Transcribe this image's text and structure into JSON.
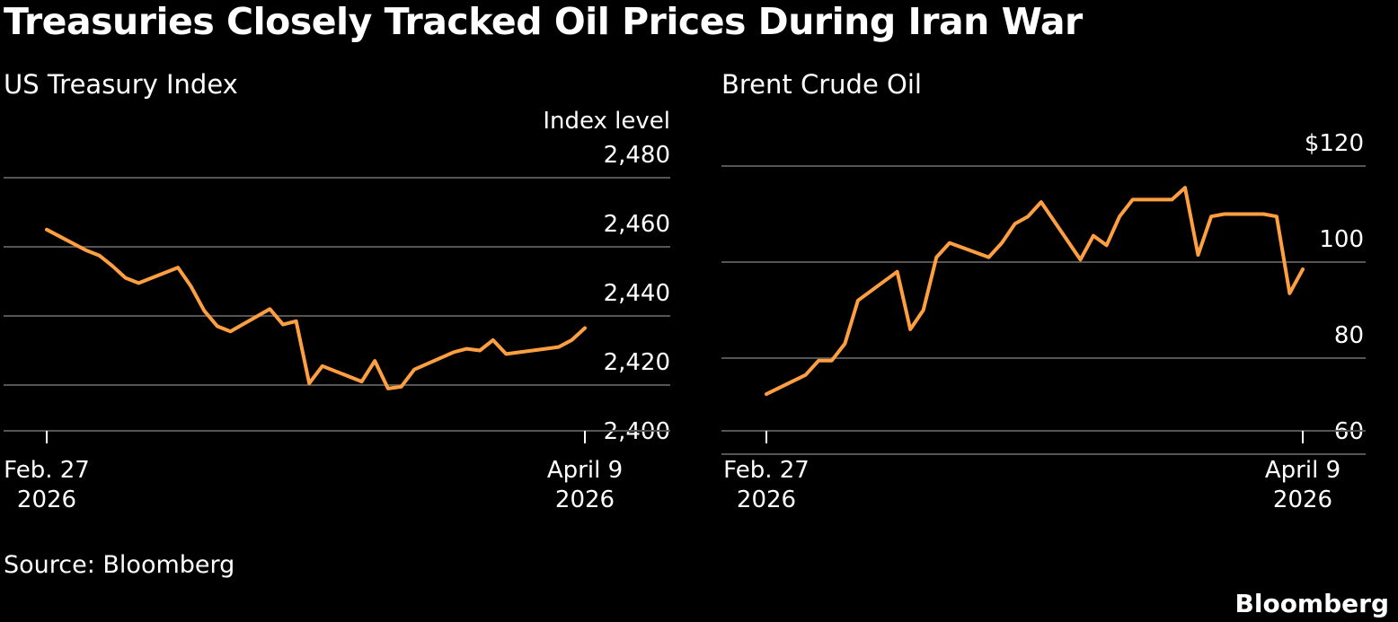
{
  "headline": "Treasuries Closely Tracked Oil Prices During Iran War",
  "source": "Source: Bloomberg",
  "brand": "Bloomberg",
  "colors": {
    "background": "#000000",
    "line": "#ff9f40",
    "grid": "#555555",
    "text": "#ffffff"
  },
  "chart_data": [
    {
      "type": "line",
      "title": "US Treasury Index",
      "ylabel": "Index level",
      "ylim": [
        2400,
        2480
      ],
      "yticks": [
        "2,400",
        "2,420",
        "2,440",
        "2,460",
        "2,480"
      ],
      "ytick_values": [
        2400,
        2420,
        2440,
        2460,
        2480
      ],
      "xlim": [
        "2026-02-27",
        "2026-04-09"
      ],
      "xtick_labels": [
        {
          "date": "2026-02-27",
          "line1": "Feb. 27",
          "line2": "2026"
        },
        {
          "date": "2026-04-09",
          "line1": "April 9",
          "line2": "2026"
        }
      ],
      "grid": true,
      "series": [
        {
          "x": [
            "2026-02-27",
            "2026-03-02",
            "2026-03-03",
            "2026-03-04",
            "2026-03-05",
            "2026-03-06",
            "2026-03-09",
            "2026-03-10",
            "2026-03-11",
            "2026-03-12",
            "2026-03-13",
            "2026-03-16",
            "2026-03-17",
            "2026-03-18",
            "2026-03-19",
            "2026-03-20",
            "2026-03-23",
            "2026-03-24",
            "2026-03-25",
            "2026-03-26",
            "2026-03-27",
            "2026-03-30",
            "2026-03-31",
            "2026-04-01",
            "2026-04-02",
            "2026-04-03",
            "2026-04-06",
            "2026-04-07",
            "2026-04-08",
            "2026-04-09"
          ],
          "y": [
            2465.0,
            2459.0,
            2457.5,
            2454.5,
            2451.0,
            2449.5,
            2454.0,
            2448.5,
            2441.5,
            2437.0,
            2435.5,
            2442.0,
            2437.5,
            2438.5,
            2420.5,
            2425.5,
            2421.0,
            2427.0,
            2419.0,
            2419.5,
            2424.5,
            2429.5,
            2430.5,
            2430.0,
            2433.0,
            2429.0,
            2430.5,
            2431.0,
            2433.0,
            2436.5
          ]
        }
      ]
    },
    {
      "type": "line",
      "title": "Brent Crude Oil",
      "ylim": [
        60,
        120
      ],
      "yticks": [
        "60",
        "80",
        "100",
        "$120"
      ],
      "ytick_values": [
        60,
        80,
        100,
        120
      ],
      "xlim": [
        "2026-02-27",
        "2026-04-09"
      ],
      "xtick_labels": [
        {
          "date": "2026-02-27",
          "line1": "Feb. 27",
          "line2": "2026"
        },
        {
          "date": "2026-04-09",
          "line1": "April 9",
          "line2": "2026"
        }
      ],
      "grid": true,
      "series": [
        {
          "x": [
            "2026-02-27",
            "2026-03-02",
            "2026-03-03",
            "2026-03-04",
            "2026-03-05",
            "2026-03-06",
            "2026-03-09",
            "2026-03-10",
            "2026-03-11",
            "2026-03-12",
            "2026-03-13",
            "2026-03-16",
            "2026-03-17",
            "2026-03-18",
            "2026-03-19",
            "2026-03-20",
            "2026-03-23",
            "2026-03-24",
            "2026-03-25",
            "2026-03-26",
            "2026-03-27",
            "2026-03-30",
            "2026-03-31",
            "2026-04-01",
            "2026-04-02",
            "2026-04-03",
            "2026-04-06",
            "2026-04-07",
            "2026-04-08",
            "2026-04-09"
          ],
          "y": [
            72.5,
            76.5,
            79.5,
            79.5,
            83.0,
            92.0,
            98.0,
            86.0,
            90.0,
            101.0,
            104.0,
            101.0,
            104.0,
            108.0,
            109.5,
            112.5,
            100.5,
            105.5,
            103.5,
            109.5,
            113.0,
            113.0,
            115.5,
            101.5,
            109.5,
            110.0,
            110.0,
            109.5,
            93.5,
            98.5
          ]
        }
      ]
    }
  ]
}
